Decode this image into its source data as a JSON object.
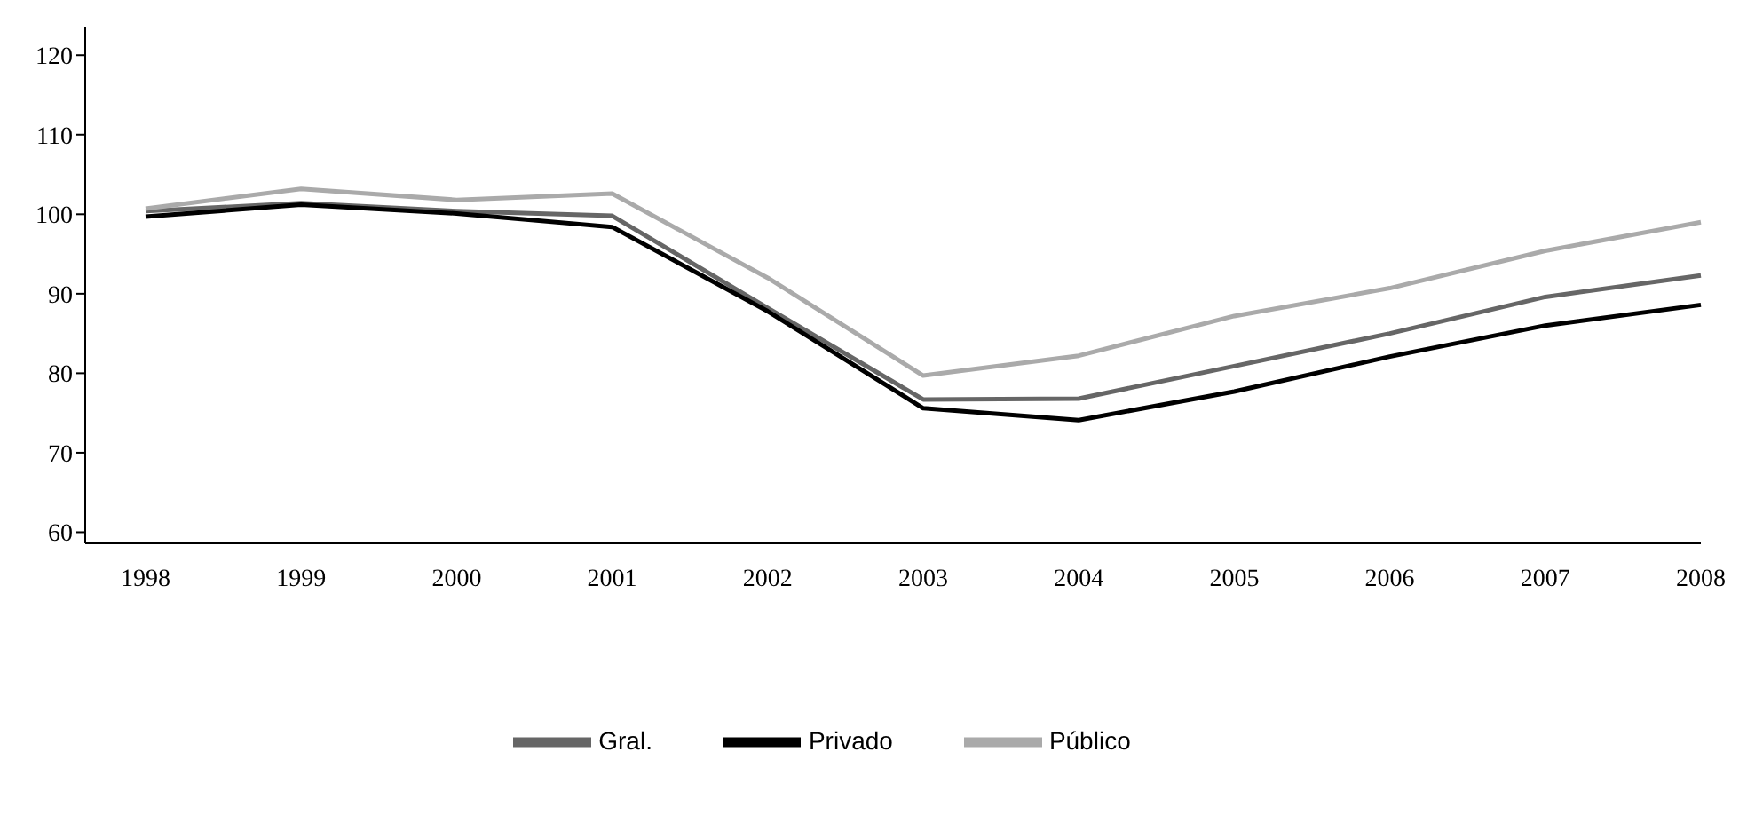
{
  "chart_data": {
    "type": "line",
    "categories": [
      "1998",
      "1999",
      "2000",
      "2001",
      "2002",
      "2003",
      "2004",
      "2005",
      "2006",
      "2007",
      "2008"
    ],
    "series": [
      {
        "name": "Gral.",
        "color": "#666666",
        "values": [
          100.4,
          101.4,
          100.4,
          99.8,
          88.2,
          76.7,
          76.8,
          80.9,
          85.0,
          89.6,
          92.3
        ]
      },
      {
        "name": "Privado",
        "color": "#000000",
        "values": [
          99.7,
          101.2,
          100.1,
          98.4,
          87.8,
          75.6,
          74.1,
          77.7,
          82.1,
          86.0,
          88.6
        ]
      },
      {
        "name": "Público",
        "color": "#aaaaaa",
        "values": [
          100.7,
          103.2,
          101.8,
          102.6,
          92.0,
          79.7,
          82.2,
          87.2,
          90.7,
          95.4,
          99.0
        ]
      }
    ],
    "ylim": [
      58.6,
      123.6
    ],
    "yticks": [
      60,
      70,
      80,
      90,
      100,
      110,
      120
    ],
    "grid": false,
    "legend": "bottom",
    "marker": "none",
    "line_style": "solid"
  }
}
